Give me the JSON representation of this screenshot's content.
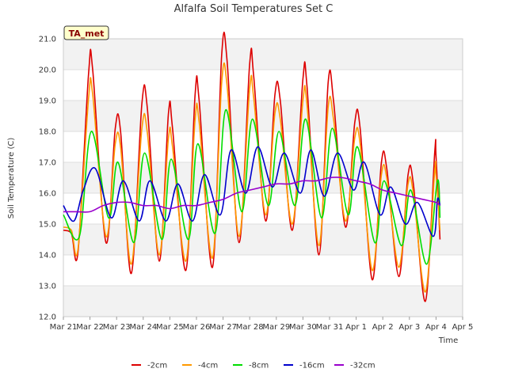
{
  "chart_data": {
    "type": "line",
    "title": "Alfalfa Soil Temperatures Set C",
    "xlabel": "Time",
    "ylabel": "Soil Temperature (C)",
    "ylim": [
      12.0,
      21.0
    ],
    "yticks": [
      "12.0",
      "13.0",
      "14.0",
      "15.0",
      "16.0",
      "17.0",
      "18.0",
      "19.0",
      "20.0",
      "21.0"
    ],
    "xlim": [
      "2021-03-21",
      "2021-04-05"
    ],
    "xticks": [
      "Mar 21",
      "Mar 22",
      "Mar 23",
      "Mar 24",
      "Mar 25",
      "Mar 26",
      "Mar 27",
      "Mar 28",
      "Mar 29",
      "Mar 30",
      "Mar 31",
      "Apr 1",
      "Apr 2",
      "Apr 3",
      "Apr 4",
      "Apr 5"
    ],
    "grid": "horizontal bands",
    "legend_position": "bottom",
    "station_label": "TA_met",
    "x_dates": [
      "Mar 21 12:00",
      "Mar 22 00:00",
      "Mar 22 12:00",
      "Mar 23 00:00",
      "Mar 23 12:00",
      "Mar 24 00:00",
      "Mar 24 12:00",
      "Mar 25 00:00",
      "Mar 25 12:00",
      "Mar 26 00:00",
      "Mar 26 12:00",
      "Mar 27 00:00",
      "Mar 27 12:00",
      "Mar 28 00:00",
      "Mar 28 12:00",
      "Mar 29 00:00",
      "Mar 29 12:00",
      "Mar 30 00:00",
      "Mar 30 12:00",
      "Mar 31 00:00",
      "Mar 31 12:00",
      "Apr 1 00:00",
      "Apr 1 12:00",
      "Apr 2 00:00",
      "Apr 2 12:00",
      "Apr 3 00:00",
      "Apr 3 12:00",
      "Apr 4 00:00",
      "Apr 4 12:00"
    ],
    "series": [
      {
        "name": "-2cm",
        "color": "#dd0000",
        "x": [
          21.0,
          21.3,
          21.55,
          21.95,
          22.1,
          22.6,
          22.95,
          23.15,
          23.55,
          23.95,
          24.15,
          24.6,
          24.95,
          25.1,
          25.6,
          25.95,
          26.1,
          26.6,
          26.95,
          27.15,
          27.6,
          28.0,
          28.15,
          28.6,
          28.95,
          29.15,
          29.6,
          30.0,
          30.15,
          30.6,
          30.95,
          31.15,
          31.6,
          31.95,
          32.15,
          32.6,
          32.95,
          33.15,
          33.6,
          33.95,
          34.15,
          34.6,
          34.95,
          35.0,
          35.15
        ],
        "y": [
          14.8,
          14.7,
          14.1,
          19.9,
          20.0,
          14.4,
          18.1,
          18.0,
          13.4,
          18.9,
          18.8,
          13.8,
          18.6,
          18.1,
          13.5,
          19.2,
          19.0,
          13.6,
          20.5,
          20.3,
          14.4,
          20.2,
          19.8,
          15.1,
          19.2,
          19.0,
          14.8,
          19.7,
          19.5,
          14.0,
          19.6,
          19.0,
          14.9,
          18.3,
          18.1,
          13.2,
          17.0,
          16.8,
          13.3,
          16.6,
          16.3,
          12.5,
          17.3,
          17.2,
          14.5
        ]
      },
      {
        "name": "-4cm",
        "color": "#ff9900",
        "x": [
          21.0,
          21.3,
          21.55,
          21.95,
          22.1,
          22.6,
          22.95,
          23.15,
          23.55,
          23.95,
          24.15,
          24.6,
          24.95,
          25.1,
          25.6,
          25.95,
          26.1,
          26.6,
          26.95,
          27.15,
          27.6,
          28.0,
          28.15,
          28.6,
          28.95,
          29.15,
          29.6,
          30.0,
          30.15,
          30.6,
          30.95,
          31.15,
          31.6,
          31.95,
          32.15,
          32.6,
          32.95,
          33.15,
          33.6,
          33.95,
          34.15,
          34.6,
          34.95,
          35.0,
          35.15
        ],
        "y": [
          14.9,
          14.8,
          14.2,
          19.1,
          19.2,
          14.6,
          17.6,
          17.5,
          13.7,
          18.1,
          18.0,
          14.0,
          17.8,
          17.5,
          13.8,
          18.4,
          18.3,
          13.9,
          19.6,
          19.5,
          14.6,
          19.4,
          19.1,
          15.3,
          18.6,
          18.4,
          15.0,
          19.0,
          18.9,
          14.3,
          18.8,
          18.4,
          15.1,
          17.8,
          17.6,
          13.5,
          16.6,
          16.5,
          13.6,
          16.3,
          16.0,
          12.8,
          16.7,
          16.6,
          14.8
        ]
      },
      {
        "name": "-8cm",
        "color": "#00dd00",
        "x": [
          21.0,
          21.6,
          22.05,
          22.7,
          23.05,
          23.65,
          24.05,
          24.7,
          25.05,
          25.7,
          26.05,
          26.7,
          27.1,
          27.7,
          28.1,
          28.7,
          29.1,
          29.7,
          30.1,
          30.7,
          31.1,
          31.7,
          32.05,
          32.7,
          33.05,
          33.7,
          34.05,
          34.65,
          35.05,
          35.15
        ],
        "y": [
          15.3,
          14.6,
          18.0,
          15.2,
          17.0,
          14.4,
          17.3,
          14.5,
          17.1,
          14.5,
          17.6,
          14.7,
          18.7,
          15.4,
          18.4,
          15.6,
          18.0,
          15.6,
          18.4,
          15.2,
          18.1,
          15.3,
          17.5,
          14.4,
          16.4,
          14.3,
          16.1,
          13.7,
          16.4,
          15.2
        ]
      },
      {
        "name": "-16cm",
        "color": "#0000cc",
        "x": [
          21.0,
          21.4,
          21.75,
          22.2,
          22.8,
          23.25,
          23.85,
          24.25,
          24.85,
          25.3,
          25.85,
          26.3,
          26.9,
          27.3,
          27.85,
          28.3,
          28.85,
          29.3,
          29.9,
          30.3,
          30.8,
          31.3,
          31.9,
          32.3,
          32.9,
          33.3,
          33.85,
          34.3,
          34.9,
          35.05,
          35.15
        ],
        "y": [
          15.6,
          15.1,
          16.1,
          16.8,
          15.2,
          16.4,
          15.1,
          16.4,
          15.1,
          16.3,
          15.1,
          16.6,
          15.3,
          17.4,
          16.0,
          17.5,
          16.2,
          17.3,
          16.0,
          17.4,
          15.9,
          17.3,
          16.1,
          17.0,
          15.3,
          16.2,
          15.0,
          15.7,
          14.6,
          15.8,
          15.6
        ]
      },
      {
        "name": "-32cm",
        "color": "#9900cc",
        "x": [
          21.0,
          21.5,
          22.0,
          22.5,
          23.0,
          23.5,
          24.0,
          24.5,
          25.0,
          25.5,
          26.0,
          26.5,
          27.0,
          27.5,
          28.0,
          28.5,
          29.0,
          29.5,
          30.0,
          30.5,
          31.0,
          31.5,
          32.0,
          32.5,
          33.0,
          33.5,
          34.0,
          34.5,
          35.0,
          35.15
        ],
        "y": [
          15.4,
          15.4,
          15.4,
          15.6,
          15.7,
          15.7,
          15.6,
          15.6,
          15.5,
          15.6,
          15.6,
          15.7,
          15.8,
          16.0,
          16.1,
          16.2,
          16.3,
          16.3,
          16.4,
          16.4,
          16.5,
          16.5,
          16.4,
          16.3,
          16.1,
          16.0,
          15.9,
          15.8,
          15.7,
          15.6
        ]
      }
    ]
  }
}
